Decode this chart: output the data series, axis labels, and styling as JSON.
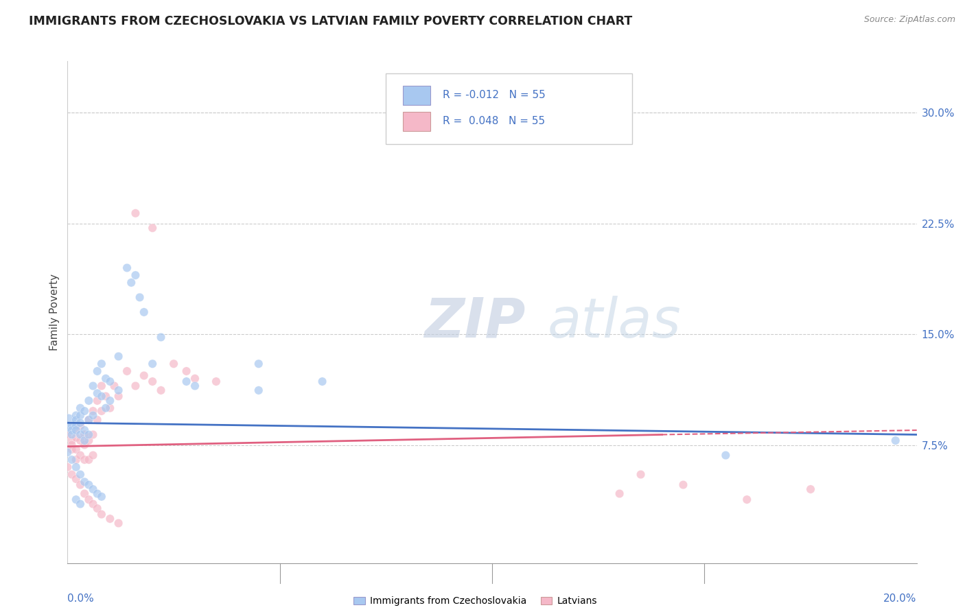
{
  "title": "IMMIGRANTS FROM CZECHOSLOVAKIA VS LATVIAN FAMILY POVERTY CORRELATION CHART",
  "source": "Source: ZipAtlas.com",
  "ylabel": "Family Poverty",
  "y_ticks": [
    0.075,
    0.15,
    0.225,
    0.3
  ],
  "y_tick_labels": [
    "7.5%",
    "15.0%",
    "22.5%",
    "30.0%"
  ],
  "xlim": [
    0.0,
    0.2
  ],
  "ylim": [
    -0.005,
    0.335
  ],
  "blue_color": "#a8c8f0",
  "pink_color": "#f5b8c8",
  "blue_line_color": "#4472c4",
  "pink_line_color": "#e06080",
  "watermark_zip": "ZIP",
  "watermark_atlas": "atlas",
  "blue_scatter": [
    [
      0.0,
      0.09
    ],
    [
      0.001,
      0.088
    ],
    [
      0.001,
      0.085
    ],
    [
      0.001,
      0.082
    ],
    [
      0.002,
      0.095
    ],
    [
      0.002,
      0.092
    ],
    [
      0.002,
      0.088
    ],
    [
      0.002,
      0.085
    ],
    [
      0.003,
      0.1
    ],
    [
      0.003,
      0.095
    ],
    [
      0.003,
      0.09
    ],
    [
      0.003,
      0.082
    ],
    [
      0.004,
      0.098
    ],
    [
      0.004,
      0.085
    ],
    [
      0.004,
      0.078
    ],
    [
      0.005,
      0.105
    ],
    [
      0.005,
      0.092
    ],
    [
      0.005,
      0.082
    ],
    [
      0.006,
      0.115
    ],
    [
      0.006,
      0.095
    ],
    [
      0.007,
      0.125
    ],
    [
      0.007,
      0.11
    ],
    [
      0.008,
      0.13
    ],
    [
      0.008,
      0.108
    ],
    [
      0.009,
      0.12
    ],
    [
      0.009,
      0.1
    ],
    [
      0.01,
      0.118
    ],
    [
      0.01,
      0.105
    ],
    [
      0.012,
      0.135
    ],
    [
      0.012,
      0.112
    ],
    [
      0.014,
      0.195
    ],
    [
      0.015,
      0.185
    ],
    [
      0.016,
      0.19
    ],
    [
      0.017,
      0.175
    ],
    [
      0.018,
      0.165
    ],
    [
      0.02,
      0.13
    ],
    [
      0.022,
      0.148
    ],
    [
      0.028,
      0.118
    ],
    [
      0.03,
      0.115
    ],
    [
      0.045,
      0.13
    ],
    [
      0.045,
      0.112
    ],
    [
      0.06,
      0.118
    ],
    [
      0.0,
      0.07
    ],
    [
      0.001,
      0.065
    ],
    [
      0.002,
      0.06
    ],
    [
      0.003,
      0.055
    ],
    [
      0.004,
      0.05
    ],
    [
      0.005,
      0.048
    ],
    [
      0.006,
      0.045
    ],
    [
      0.007,
      0.042
    ],
    [
      0.008,
      0.04
    ],
    [
      0.002,
      0.038
    ],
    [
      0.003,
      0.035
    ],
    [
      0.155,
      0.068
    ],
    [
      0.195,
      0.078
    ]
  ],
  "blue_sizes": [
    350,
    80,
    80,
    80,
    80,
    80,
    80,
    80,
    80,
    80,
    80,
    80,
    80,
    80,
    80,
    80,
    80,
    80,
    80,
    80,
    80,
    80,
    80,
    80,
    80,
    80,
    80,
    80,
    80,
    80,
    80,
    80,
    80,
    80,
    80,
    80,
    80,
    80,
    80,
    80,
    80,
    80,
    80,
    80,
    80,
    80,
    80,
    80,
    80,
    80,
    80,
    80,
    80,
    80,
    80
  ],
  "pink_scatter": [
    [
      0.0,
      0.082
    ],
    [
      0.001,
      0.078
    ],
    [
      0.001,
      0.075
    ],
    [
      0.001,
      0.072
    ],
    [
      0.002,
      0.085
    ],
    [
      0.002,
      0.08
    ],
    [
      0.002,
      0.072
    ],
    [
      0.002,
      0.065
    ],
    [
      0.003,
      0.088
    ],
    [
      0.003,
      0.078
    ],
    [
      0.003,
      0.068
    ],
    [
      0.004,
      0.082
    ],
    [
      0.004,
      0.075
    ],
    [
      0.004,
      0.065
    ],
    [
      0.005,
      0.092
    ],
    [
      0.005,
      0.078
    ],
    [
      0.005,
      0.065
    ],
    [
      0.006,
      0.098
    ],
    [
      0.006,
      0.082
    ],
    [
      0.006,
      0.068
    ],
    [
      0.007,
      0.105
    ],
    [
      0.007,
      0.092
    ],
    [
      0.008,
      0.115
    ],
    [
      0.008,
      0.098
    ],
    [
      0.009,
      0.108
    ],
    [
      0.01,
      0.1
    ],
    [
      0.011,
      0.115
    ],
    [
      0.012,
      0.108
    ],
    [
      0.014,
      0.125
    ],
    [
      0.016,
      0.115
    ],
    [
      0.018,
      0.122
    ],
    [
      0.02,
      0.118
    ],
    [
      0.022,
      0.112
    ],
    [
      0.025,
      0.13
    ],
    [
      0.028,
      0.125
    ],
    [
      0.03,
      0.12
    ],
    [
      0.035,
      0.118
    ],
    [
      0.0,
      0.06
    ],
    [
      0.001,
      0.055
    ],
    [
      0.002,
      0.052
    ],
    [
      0.003,
      0.048
    ],
    [
      0.004,
      0.042
    ],
    [
      0.005,
      0.038
    ],
    [
      0.006,
      0.035
    ],
    [
      0.007,
      0.032
    ],
    [
      0.008,
      0.028
    ],
    [
      0.01,
      0.025
    ],
    [
      0.012,
      0.022
    ],
    [
      0.016,
      0.232
    ],
    [
      0.02,
      0.222
    ],
    [
      0.13,
      0.042
    ],
    [
      0.16,
      0.038
    ],
    [
      0.135,
      0.055
    ],
    [
      0.145,
      0.048
    ],
    [
      0.175,
      0.045
    ]
  ],
  "pink_sizes": [
    80,
    80,
    80,
    80,
    80,
    80,
    80,
    80,
    80,
    80,
    80,
    80,
    80,
    80,
    80,
    80,
    80,
    80,
    80,
    80,
    80,
    80,
    80,
    80,
    80,
    80,
    80,
    80,
    80,
    80,
    80,
    80,
    80,
    80,
    80,
    80,
    80,
    80,
    80,
    80,
    80,
    80,
    80,
    80,
    80,
    80,
    80,
    80,
    80,
    80,
    80,
    80,
    80,
    80,
    80
  ],
  "blue_line": [
    [
      0.0,
      0.09
    ],
    [
      0.2,
      0.082
    ]
  ],
  "pink_line_solid": [
    [
      0.0,
      0.074
    ],
    [
      0.14,
      0.082
    ]
  ],
  "pink_line_dashed": [
    [
      0.14,
      0.082
    ],
    [
      0.2,
      0.085
    ]
  ]
}
